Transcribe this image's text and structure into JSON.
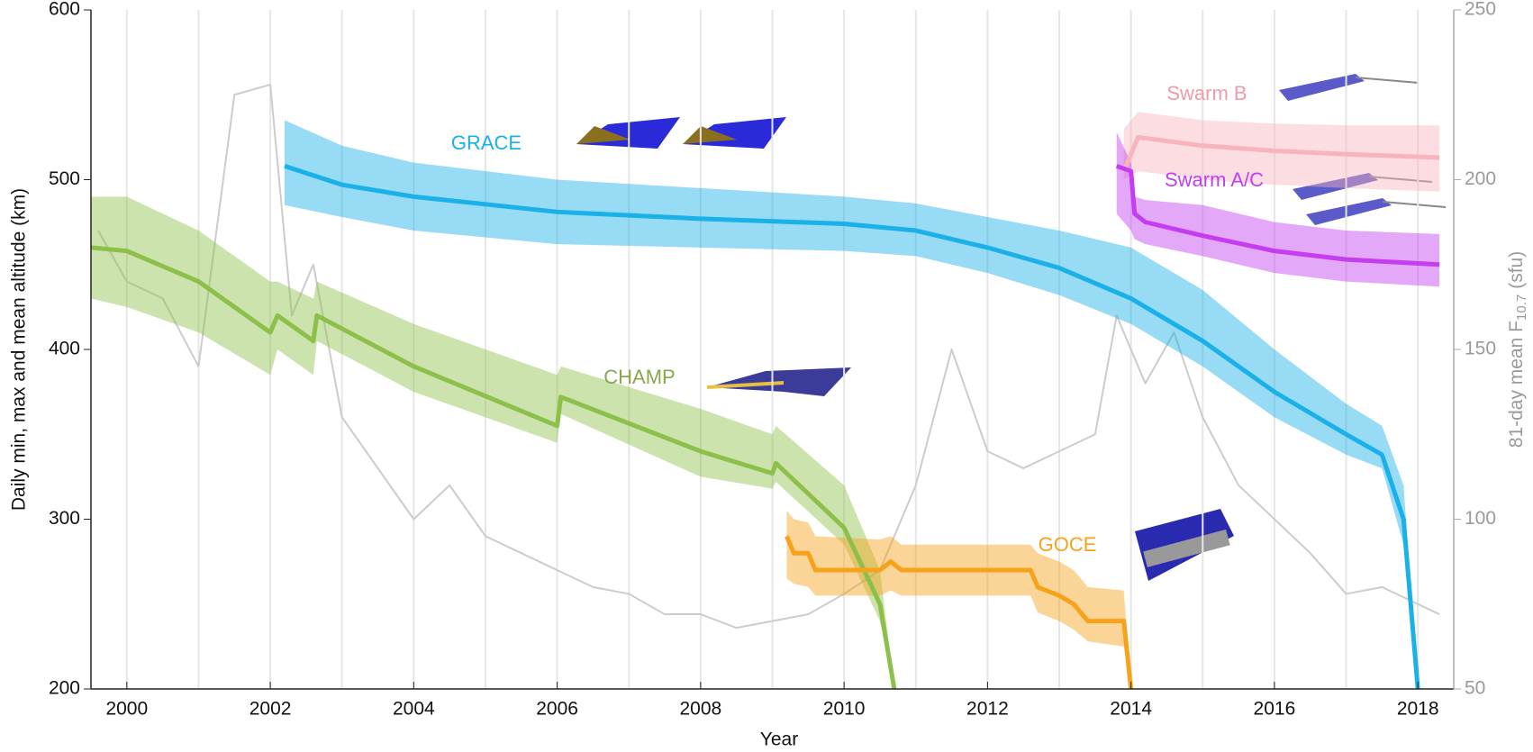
{
  "chart_data": {
    "type": "line",
    "xlabel": "Year",
    "ylabel": "Daily min, max and mean altitude (km)",
    "y2label": "81-day mean F",
    "y2label_sub": "10.7",
    "y2label_unit": "(sfu)",
    "xlim": [
      1999.5,
      2018.5
    ],
    "xticks": [
      2000,
      2002,
      2004,
      2006,
      2008,
      2010,
      2012,
      2014,
      2016,
      2018
    ],
    "xgrid": [
      2000,
      2001,
      2002,
      2003,
      2004,
      2005,
      2006,
      2007,
      2008,
      2009,
      2010,
      2011,
      2012,
      2013,
      2014,
      2015,
      2016,
      2017,
      2018
    ],
    "ylim": [
      200,
      600
    ],
    "yticks": [
      200,
      300,
      400,
      500,
      600
    ],
    "y2lim": [
      50,
      250
    ],
    "y2ticks": [
      50,
      100,
      150,
      200,
      250
    ],
    "series": [
      {
        "name": "GRACE",
        "color": "#1ab0e8",
        "x": [
          2002.2,
          2003,
          2004,
          2006,
          2008,
          2010,
          2011,
          2012,
          2013,
          2014,
          2015,
          2016,
          2017,
          2017.5,
          2017.8,
          2018
        ],
        "values": [
          508,
          497,
          490,
          481,
          477,
          474,
          470,
          460,
          448,
          430,
          405,
          375,
          350,
          338,
          300,
          200
        ],
        "max": [
          535,
          520,
          510,
          500,
          495,
          490,
          486,
          478,
          470,
          460,
          435,
          400,
          368,
          355,
          320,
          200
        ],
        "min": [
          485,
          478,
          470,
          462,
          460,
          458,
          455,
          445,
          432,
          415,
          390,
          360,
          338,
          330,
          285,
          200
        ]
      },
      {
        "name": "CHAMP",
        "color": "#8dc04a",
        "x": [
          1999.5,
          2000,
          2001,
          2002,
          2002.1,
          2002.6,
          2002.65,
          2004,
          2006,
          2006.05,
          2008,
          2009,
          2009.05,
          2010,
          2010.5,
          2010.7
        ],
        "values": [
          460,
          458,
          440,
          410,
          420,
          405,
          420,
          390,
          355,
          372,
          340,
          327,
          333,
          295,
          250,
          200
        ],
        "max": [
          490,
          490,
          470,
          440,
          440,
          430,
          440,
          415,
          385,
          390,
          365,
          350,
          355,
          320,
          270,
          200
        ],
        "min": [
          430,
          425,
          410,
          385,
          400,
          385,
          405,
          375,
          345,
          362,
          325,
          318,
          322,
          285,
          240,
          200
        ]
      },
      {
        "name": "GOCE",
        "color": "#f7a21b",
        "x": [
          2009.2,
          2009.3,
          2009.5,
          2009.6,
          2010.5,
          2010.65,
          2010.8,
          2012.6,
          2012.7,
          2013,
          2013.2,
          2013.4,
          2013.9,
          2014
        ],
        "values": [
          290,
          280,
          280,
          270,
          270,
          275,
          270,
          270,
          260,
          255,
          250,
          240,
          240,
          200
        ],
        "max": [
          305,
          300,
          298,
          290,
          288,
          290,
          285,
          285,
          280,
          275,
          270,
          260,
          258,
          200
        ],
        "min": [
          265,
          262,
          260,
          255,
          255,
          258,
          255,
          255,
          245,
          240,
          235,
          228,
          225,
          200
        ]
      },
      {
        "name": "Swarm B",
        "color": "#f9b3bd",
        "x": [
          2013.9,
          2014.1,
          2015,
          2016,
          2017,
          2018.3
        ],
        "values": [
          505,
          525,
          520,
          517,
          515,
          513
        ],
        "max": [
          530,
          540,
          535,
          533,
          532,
          532
        ],
        "min": [
          500,
          505,
          500,
          497,
          495,
          493
        ]
      },
      {
        "name": "Swarm A/C",
        "color": "#c43df0",
        "x": [
          2013.8,
          2014,
          2014.05,
          2014.2,
          2015,
          2016,
          2017,
          2018.3
        ],
        "values": [
          508,
          505,
          480,
          475,
          467,
          458,
          453,
          450
        ],
        "max": [
          528,
          510,
          490,
          488,
          485,
          475,
          470,
          468
        ],
        "min": [
          480,
          470,
          465,
          462,
          455,
          445,
          440,
          437
        ]
      },
      {
        "name": "F10.7",
        "color": "#cccccc",
        "axis": "y2",
        "x": [
          1999.6,
          2000,
          2000.5,
          2001,
          2001.5,
          2002,
          2002.3,
          2002.6,
          2003,
          2003.5,
          2004,
          2004.5,
          2005,
          2005.5,
          2006,
          2006.5,
          2007,
          2007.5,
          2008,
          2008.5,
          2009,
          2009.5,
          2010,
          2010.5,
          2011,
          2011.5,
          2012,
          2012.5,
          2013,
          2013.5,
          2013.8,
          2014.2,
          2014.6,
          2015,
          2015.5,
          2016,
          2016.5,
          2017,
          2017.5,
          2018,
          2018.3
        ],
        "values": [
          185,
          170,
          165,
          145,
          225,
          228,
          160,
          175,
          130,
          115,
          100,
          110,
          95,
          90,
          85,
          80,
          78,
          72,
          72,
          68,
          70,
          72,
          78,
          85,
          110,
          150,
          120,
          115,
          120,
          125,
          160,
          140,
          155,
          130,
          110,
          100,
          90,
          78,
          80,
          75,
          72
        ]
      }
    ]
  }
}
